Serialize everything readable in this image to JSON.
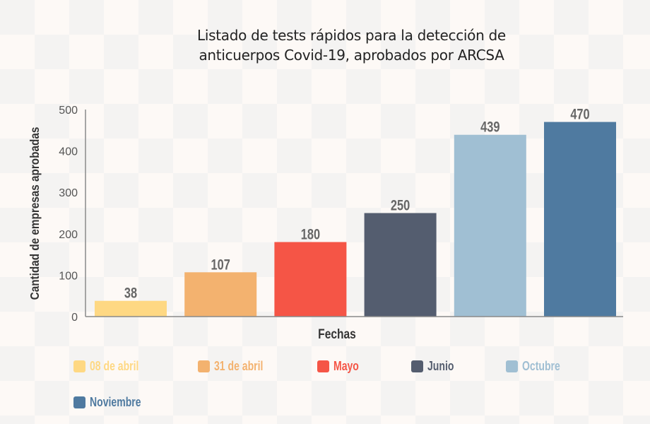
{
  "chart_data": {
    "type": "bar",
    "title": "Listado de tests rápidos para la detección de anticuerpos Covid-19, aprobados por ARCSA",
    "title_lines": [
      "Listado de tests rápidos para la detección de",
      "anticuerpos Covid-19, aprobados por ARCSA"
    ],
    "xlabel": "Fechas",
    "ylabel": "Cantidad de empresas aprobadas",
    "ylim": [
      0,
      500
    ],
    "yticks": [
      0,
      100,
      200,
      300,
      400,
      500
    ],
    "grid": false,
    "categories": [
      "08 de abril",
      "31 de abril",
      "Mayo",
      "Junio",
      "Octubre",
      "Noviembre"
    ],
    "values": [
      38,
      107,
      180,
      250,
      439,
      470
    ],
    "colors": [
      "#fed883",
      "#f3b26f",
      "#f55546",
      "#545d6f",
      "#a0bfd3",
      "#4f7aa0"
    ],
    "data_labels": [
      "38",
      "107",
      "180",
      "250",
      "439",
      "470"
    ],
    "legend": {
      "placement": "bottom",
      "entries": [
        {
          "label": "08 de abril",
          "color": "#fed883"
        },
        {
          "label": "31 de abril",
          "color": "#f3b26f"
        },
        {
          "label": "Mayo",
          "color": "#f55546"
        },
        {
          "label": "Junio",
          "color": "#545d6f"
        },
        {
          "label": "Octubre",
          "color": "#a0bfd3"
        },
        {
          "label": "Noviembre",
          "color": "#4f7aa0"
        }
      ]
    }
  }
}
